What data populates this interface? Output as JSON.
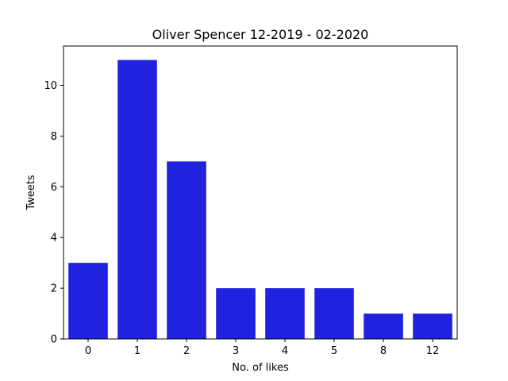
{
  "chart_data": {
    "type": "bar",
    "title": "Oliver Spencer 12-2019 - 02-2020",
    "xlabel": "No. of likes",
    "ylabel": "Tweets",
    "categories": [
      "0",
      "1",
      "2",
      "3",
      "4",
      "5",
      "8",
      "12"
    ],
    "values": [
      3,
      11,
      7,
      2,
      2,
      2,
      1,
      1
    ],
    "ylim": [
      0,
      11.55
    ],
    "yticks": [
      0,
      2,
      4,
      6,
      8,
      10
    ],
    "bar_color": "#2121e0",
    "grid": false,
    "legend": "none"
  }
}
